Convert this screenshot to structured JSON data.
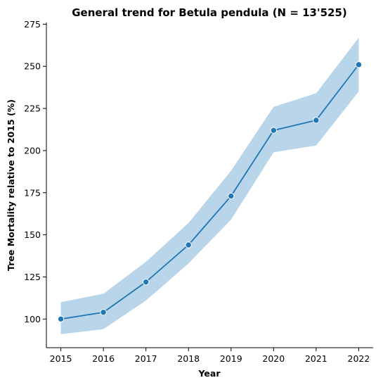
{
  "chart_data": {
    "type": "line",
    "title": "General trend for Betula pendula  (N = 13'525)",
    "xlabel": "Year",
    "ylabel": "Tree Mortality relative to 2015 (%)",
    "x": [
      2015,
      2016,
      2017,
      2018,
      2019,
      2020,
      2021,
      2022
    ],
    "xticks": [
      "2015",
      "2016",
      "2017",
      "2018",
      "2019",
      "2020",
      "2021",
      "2022"
    ],
    "yticks": [
      100,
      125,
      150,
      175,
      200,
      225,
      250,
      275
    ],
    "ylim": [
      83,
      276
    ],
    "xlim": [
      2014.66,
      2022.34
    ],
    "grid": false,
    "series": [
      {
        "values": [
          100,
          104,
          122,
          144,
          173,
          212,
          218,
          251
        ],
        "ci_lower": [
          91,
          94,
          111,
          133,
          159,
          199,
          203,
          235
        ],
        "ci_upper": [
          110,
          115,
          134,
          157,
          188,
          226,
          234,
          267
        ],
        "color": "#1f77b4",
        "band_color": "#b9d5ea"
      }
    ]
  }
}
